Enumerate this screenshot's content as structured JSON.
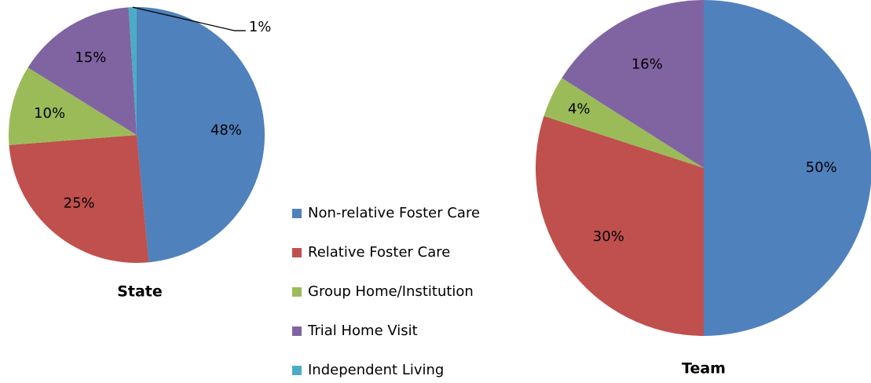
{
  "chart_data": [
    {
      "type": "pie",
      "title": "State",
      "categories": [
        "Non-relative Foster Care",
        "Relative Foster Care",
        "Group Home/Institution",
        "Trial Home Visit",
        "Independent Living"
      ],
      "values": [
        48,
        25,
        10,
        15,
        1
      ],
      "value_labels": [
        "48%",
        "25%",
        "10%",
        "15%",
        "1%"
      ],
      "colors": [
        "#4f81bd",
        "#c0504d",
        "#9bbb59",
        "#8064a2",
        "#4bacc6"
      ]
    },
    {
      "type": "pie",
      "title": "Team",
      "categories": [
        "Non-relative Foster Care",
        "Relative Foster Care",
        "Group Home/Institution",
        "Trial Home Visit"
      ],
      "values": [
        50,
        30,
        4,
        16
      ],
      "value_labels": [
        "50%",
        "30%",
        "4%",
        "16%"
      ],
      "colors": [
        "#4f81bd",
        "#c0504d",
        "#9bbb59",
        "#8064a2"
      ]
    }
  ]
}
